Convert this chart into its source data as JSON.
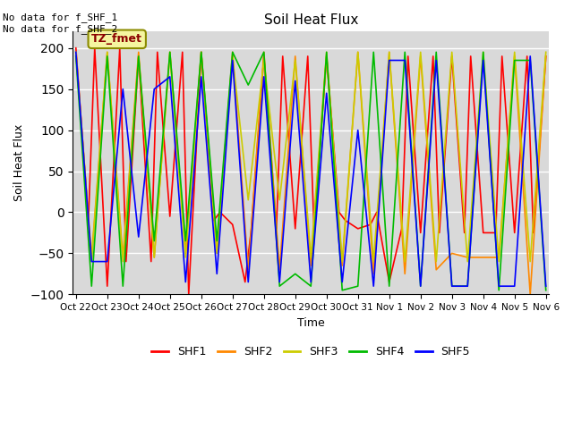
{
  "title": "Soil Heat Flux",
  "ylabel": "Soil Heat Flux",
  "xlabel": "Time",
  "ylim": [
    -100,
    220
  ],
  "yticks": [
    -100,
    -50,
    0,
    50,
    100,
    150,
    200
  ],
  "annotation_text": "No data for f_SHF_1\nNo data for f_SHF_2",
  "box_label": "TZ_fmet",
  "plot_bg": "#d9d9d9",
  "fig_bg": "#ffffff",
  "legend_labels": [
    "SHF1",
    "SHF2",
    "SHF3",
    "SHF4",
    "SHF5"
  ],
  "legend_colors": [
    "#ff0000",
    "#ff8800",
    "#cccc00",
    "#00bb00",
    "#0000ff"
  ],
  "x_tick_labels": [
    "Oct 22",
    "Oct 23",
    "Oct 24",
    "Oct 25",
    "Oct 26",
    "Oct 27",
    "Oct 28",
    "Oct 29",
    "Oct 30",
    "Oct 31",
    "Nov 1",
    "Nov 2",
    "Nov 3",
    "Nov 4",
    "Nov 5",
    "Nov 6"
  ],
  "shf1_x": [
    0,
    0.4,
    0.6,
    1.0,
    1.4,
    1.6,
    2.0,
    2.4,
    2.6,
    3.0,
    3.4,
    3.6,
    4.0,
    4.4,
    4.6,
    5.0,
    5.4,
    5.6,
    6.0,
    6.4,
    6.6,
    7.0,
    7.4,
    7.6,
    8.0,
    8.4,
    8.6,
    9.0,
    9.4,
    9.6,
    10.0,
    10.4,
    10.6,
    11.0,
    11.4,
    11.6,
    12.0,
    12.4,
    12.6,
    13.0,
    13.4,
    13.6,
    14.0,
    14.4,
    14.6,
    15.0
  ],
  "shf1_y": [
    200,
    -10,
    200,
    -90,
    200,
    -60,
    190,
    -60,
    195,
    -5,
    195,
    -100,
    195,
    -10,
    0,
    -15,
    -85,
    -20,
    190,
    -20,
    190,
    -20,
    190,
    -20,
    190,
    0,
    -10,
    -20,
    -15,
    0,
    -85,
    -20,
    190,
    -25,
    190,
    -25,
    190,
    -25,
    190,
    -25,
    -25,
    190,
    -25,
    190,
    -25,
    190
  ],
  "shf2_x": [
    0,
    0.5,
    1.0,
    1.5,
    2.0,
    2.5,
    3.0,
    3.5,
    4.0,
    4.5,
    5.0,
    5.5,
    6.0,
    6.5,
    7.0,
    7.5,
    8.0,
    8.5,
    9.0,
    9.5,
    10.0,
    10.5,
    11.0,
    11.5,
    12.0,
    12.5,
    13.0,
    13.5,
    14.0,
    14.5,
    15.0
  ],
  "shf2_y": [
    195,
    -55,
    195,
    -55,
    195,
    -55,
    195,
    -50,
    195,
    -50,
    195,
    -70,
    195,
    -70,
    190,
    -65,
    190,
    -65,
    195,
    -75,
    195,
    -75,
    190,
    -70,
    -50,
    -55,
    -55,
    -55,
    190,
    -100,
    190
  ],
  "shf3_x": [
    0,
    0.5,
    1.0,
    1.5,
    2.0,
    2.5,
    3.0,
    3.5,
    4.0,
    4.5,
    5.0,
    5.5,
    6.0,
    6.5,
    7.0,
    7.5,
    8.0,
    8.5,
    9.0,
    9.5,
    10.0,
    10.5,
    11.0,
    11.5,
    12.0,
    12.5,
    13.0,
    13.5,
    14.0,
    14.5,
    15.0
  ],
  "shf3_y": [
    195,
    -60,
    195,
    -60,
    190,
    -55,
    195,
    -55,
    195,
    -50,
    190,
    15,
    185,
    15,
    185,
    -55,
    195,
    -60,
    195,
    -60,
    195,
    -60,
    195,
    -60,
    195,
    -60,
    195,
    -60,
    195,
    -60,
    195
  ],
  "shf4_x": [
    0,
    0.5,
    1.0,
    1.5,
    2.0,
    2.5,
    3.0,
    3.5,
    4.0,
    4.5,
    5.0,
    5.5,
    6.0,
    6.5,
    7.0,
    7.5,
    8.0,
    8.5,
    9.0,
    9.5,
    10.0,
    10.5,
    11.0,
    11.5,
    12.0,
    12.5,
    13.0,
    13.5,
    14.0,
    14.5,
    15.0
  ],
  "shf4_y": [
    190,
    -90,
    190,
    -90,
    190,
    -35,
    195,
    -35,
    195,
    -35,
    195,
    155,
    195,
    -90,
    -75,
    -90,
    195,
    -95,
    -90,
    195,
    -90,
    195,
    -90,
    195,
    -90,
    -90,
    195,
    -95,
    185,
    185,
    -95
  ],
  "shf5_x": [
    0,
    0.5,
    1.0,
    1.5,
    2.0,
    2.5,
    3.0,
    3.5,
    4.0,
    4.5,
    5.0,
    5.5,
    6.0,
    6.5,
    7.0,
    7.5,
    8.0,
    8.5,
    9.0,
    9.5,
    10.0,
    10.5,
    11.0,
    11.5,
    12.0,
    12.5,
    13.0,
    13.5,
    14.0,
    14.5,
    15.0
  ],
  "shf5_y": [
    195,
    -60,
    -60,
    150,
    -30,
    150,
    165,
    -85,
    165,
    -75,
    185,
    -85,
    165,
    -85,
    160,
    -85,
    145,
    -85,
    100,
    -90,
    185,
    185,
    -90,
    185,
    -90,
    -90,
    185,
    -90,
    -90,
    190,
    -90
  ]
}
